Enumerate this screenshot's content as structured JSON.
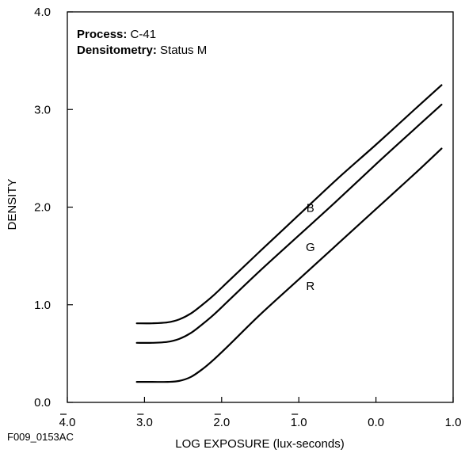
{
  "figure_id": "F009_0153AC",
  "chart_data": {
    "type": "line",
    "title": "",
    "xlabel": "LOG EXPOSURE (lux-seconds)",
    "ylabel": "DENSITY",
    "xlim": [
      -4.0,
      1.0
    ],
    "ylim": [
      0.0,
      4.0
    ],
    "x_ticks": [
      {
        "value": -4.0,
        "label": "4.0",
        "bar": true
      },
      {
        "value": -3.0,
        "label": "3.0",
        "bar": true
      },
      {
        "value": -2.0,
        "label": "2.0",
        "bar": true
      },
      {
        "value": -1.0,
        "label": "1.0",
        "bar": true
      },
      {
        "value": 0.0,
        "label": "0.0",
        "bar": false
      },
      {
        "value": 1.0,
        "label": "1.0",
        "bar": false
      }
    ],
    "y_ticks": [
      {
        "value": 0.0,
        "label": "0.0"
      },
      {
        "value": 1.0,
        "label": "1.0"
      },
      {
        "value": 2.0,
        "label": "2.0"
      },
      {
        "value": 3.0,
        "label": "3.0"
      },
      {
        "value": 4.0,
        "label": "4.0"
      }
    ],
    "info": [
      {
        "key": "Process:",
        "value": "C-41"
      },
      {
        "key": "Densitometry:",
        "value": "Status M"
      }
    ],
    "grid": false,
    "legend": "none",
    "series": [
      {
        "name": "B",
        "label_at": {
          "x": -0.85,
          "y": 2.0
        },
        "x": [
          -3.1,
          -2.9,
          -2.7,
          -2.55,
          -2.4,
          -2.25,
          -2.1,
          -1.9,
          -1.5,
          -1.0,
          -0.5,
          0.0,
          0.5,
          0.85
        ],
        "y": [
          0.81,
          0.81,
          0.82,
          0.85,
          0.91,
          1.0,
          1.1,
          1.25,
          1.55,
          1.92,
          2.29,
          2.64,
          3.0,
          3.25
        ]
      },
      {
        "name": "G",
        "label_at": {
          "x": -0.85,
          "y": 1.6
        },
        "x": [
          -3.1,
          -2.9,
          -2.7,
          -2.55,
          -2.4,
          -2.25,
          -2.1,
          -1.9,
          -1.5,
          -1.0,
          -0.5,
          0.0,
          0.5,
          0.85
        ],
        "y": [
          0.61,
          0.61,
          0.62,
          0.65,
          0.71,
          0.8,
          0.9,
          1.05,
          1.35,
          1.71,
          2.07,
          2.44,
          2.8,
          3.05
        ]
      },
      {
        "name": "R",
        "label_at": {
          "x": -0.85,
          "y": 1.2
        },
        "x": [
          -3.1,
          -2.9,
          -2.7,
          -2.55,
          -2.4,
          -2.25,
          -2.1,
          -1.9,
          -1.5,
          -1.0,
          -0.5,
          0.0,
          0.5,
          0.85
        ],
        "y": [
          0.21,
          0.21,
          0.21,
          0.22,
          0.26,
          0.34,
          0.44,
          0.59,
          0.9,
          1.26,
          1.62,
          1.98,
          2.34,
          2.6
        ]
      }
    ]
  }
}
